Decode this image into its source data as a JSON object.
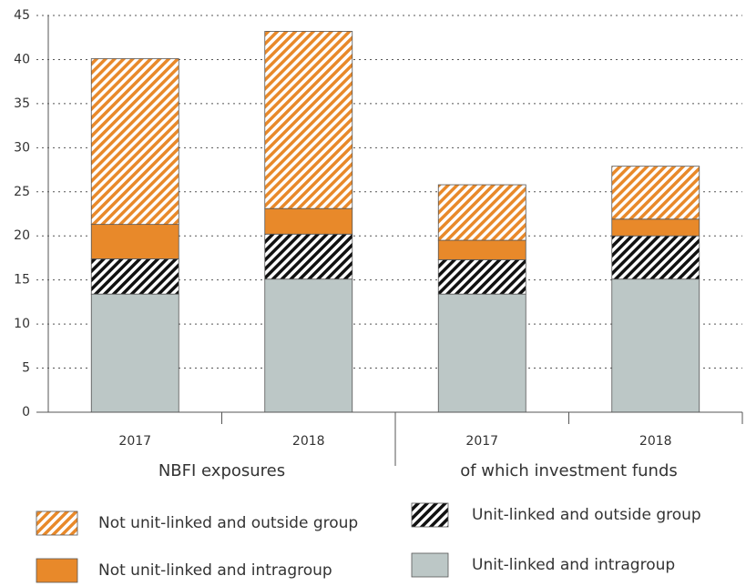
{
  "chart_data": {
    "type": "stacked_bar",
    "categories": [
      "2017",
      "2018",
      "2017",
      "2018"
    ],
    "groups": [
      "NBFI exposures",
      "of which investment funds"
    ],
    "series": [
      {
        "name": "Unit-linked and intragroup",
        "color": "#bcc7c6",
        "hatch": false,
        "values": [
          13.4,
          15.1,
          13.4,
          15.1
        ]
      },
      {
        "name": "Unit-linked and outside group",
        "color": "#111111",
        "hatch": true,
        "values": [
          4.0,
          5.1,
          3.9,
          4.9
        ]
      },
      {
        "name": "Not unit-linked and intragroup",
        "color": "#e8892a",
        "hatch": false,
        "values": [
          3.9,
          2.9,
          2.2,
          1.9
        ]
      },
      {
        "name": "Not unit-linked and outside group",
        "color": "#e8892a",
        "hatch": true,
        "values": [
          18.8,
          20.1,
          6.3,
          6.0
        ]
      }
    ],
    "ylim": [
      0,
      45
    ],
    "yticks": [
      0,
      5,
      10,
      15,
      20,
      25,
      30,
      35,
      40,
      45
    ],
    "grid": true
  }
}
